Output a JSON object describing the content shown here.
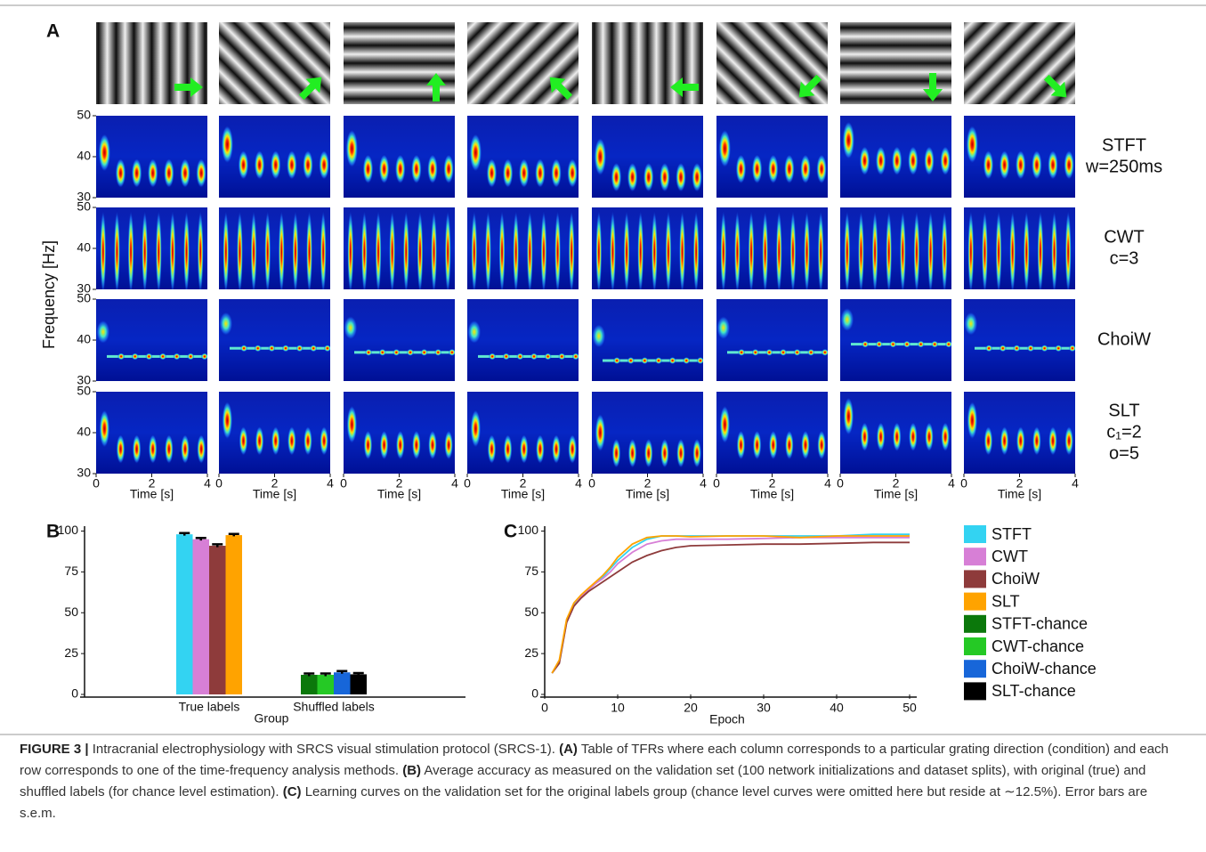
{
  "panel_a": {
    "label": "A",
    "y_label": "Frequency [Hz]",
    "x_label": "Time [s]",
    "ylim": [
      30,
      50
    ],
    "yticks": [
      30,
      40,
      50
    ],
    "xlim": [
      0,
      4
    ],
    "xticks": [
      0,
      2,
      4
    ],
    "rows": [
      {
        "label_lines": [
          "STFT",
          "w=250ms"
        ]
      },
      {
        "label_lines": [
          "CWT",
          "c=3"
        ]
      },
      {
        "label_lines": [
          "ChoiW"
        ]
      },
      {
        "label_lines": [
          "SLT",
          "c₁=2",
          "o=5"
        ]
      }
    ]
  },
  "chart_data": [
    {
      "type": "bar",
      "label": "B",
      "x_label": "Group",
      "categories": [
        "True labels",
        "Shuffled labels"
      ],
      "ylim": [
        0,
        103
      ],
      "yticks": [
        0,
        25,
        50,
        75,
        100
      ],
      "legend": "right",
      "series": [
        {
          "name": "STFT",
          "color": "#33d3f2",
          "values": [
            98,
            null
          ],
          "errors": [
            0.8,
            null
          ]
        },
        {
          "name": "CWT",
          "color": "#d77fd6",
          "values": [
            95,
            null
          ],
          "errors": [
            0.8,
            null
          ]
        },
        {
          "name": "ChoiW",
          "color": "#8e3b3b",
          "values": [
            91,
            null
          ],
          "errors": [
            0.9,
            null
          ]
        },
        {
          "name": "SLT",
          "color": "#ffa300",
          "values": [
            97.5,
            null
          ],
          "errors": [
            0.7,
            null
          ]
        },
        {
          "name": "STFT-chance",
          "color": "#0b780b",
          "values": [
            null,
            12
          ],
          "errors": [
            null,
            0.8
          ]
        },
        {
          "name": "CWT-chance",
          "color": "#25c925",
          "values": [
            null,
            12
          ],
          "errors": [
            null,
            0.8
          ]
        },
        {
          "name": "ChoiW-chance",
          "color": "#1766d9",
          "values": [
            null,
            13.5
          ],
          "errors": [
            null,
            0.8
          ]
        },
        {
          "name": "SLT-chance",
          "color": "#000000",
          "values": [
            null,
            12.3
          ],
          "errors": [
            null,
            0.8
          ]
        }
      ]
    },
    {
      "type": "line",
      "label": "C",
      "x_label": "Epoch",
      "xlim": [
        0,
        50
      ],
      "xticks": [
        0,
        10,
        20,
        30,
        40,
        50
      ],
      "ylim": [
        0,
        103
      ],
      "yticks": [
        0,
        25,
        50,
        75,
        100
      ],
      "x": [
        1,
        2,
        3,
        4,
        5,
        6,
        7,
        8,
        9,
        10,
        12,
        14,
        16,
        18,
        20,
        25,
        30,
        35,
        40,
        45,
        50
      ],
      "series": [
        {
          "color": "#33d3f2",
          "values": [
            13,
            20,
            45,
            55,
            60,
            64,
            68,
            72,
            77,
            82,
            90,
            95,
            97,
            97,
            97,
            97,
            97,
            97,
            97,
            98,
            98
          ]
        },
        {
          "color": "#d77fd6",
          "values": [
            13,
            20,
            44,
            54,
            60,
            64,
            68,
            71,
            75,
            80,
            87,
            92,
            94,
            95,
            95,
            95,
            95.5,
            96,
            96,
            96,
            96
          ]
        },
        {
          "color": "#8e3b3b",
          "values": [
            13,
            19,
            44,
            54,
            59,
            63,
            66,
            69,
            72,
            75,
            81,
            85,
            88,
            90,
            91,
            91.5,
            92,
            92,
            92.5,
            93,
            93
          ]
        },
        {
          "color": "#ffa300",
          "values": [
            13,
            21,
            46,
            56,
            61,
            65,
            69,
            73,
            78,
            84,
            92,
            96,
            97,
            97,
            96.5,
            97,
            97,
            96,
            97,
            97,
            97
          ]
        }
      ]
    }
  ],
  "caption": {
    "segments": [
      {
        "text": "FIGURE 3 |",
        "bold": true
      },
      {
        "text": " Intracranial electrophysiology with SRCS visual stimulation protocol (SRCS-1). ",
        "bold": false
      },
      {
        "text": "(A)",
        "bold": true
      },
      {
        "text": " Table of TFRs where each column corresponds to a particular grating direction (condition) and each row corresponds to one of the time-frequency analysis methods. ",
        "bold": false
      },
      {
        "text": "(B)",
        "bold": true
      },
      {
        "text": " Average accuracy as measured on the validation set (100 network initializations and dataset splits), with original (true) and shuffled labels (for chance level estimation). ",
        "bold": false
      },
      {
        "text": "(C)",
        "bold": true
      },
      {
        "text": " Learning curves on the validation set for the original labels group (chance level curves were omitted here but reside at ∼12.5%). Error bars are s.e.m.",
        "bold": false
      }
    ]
  }
}
